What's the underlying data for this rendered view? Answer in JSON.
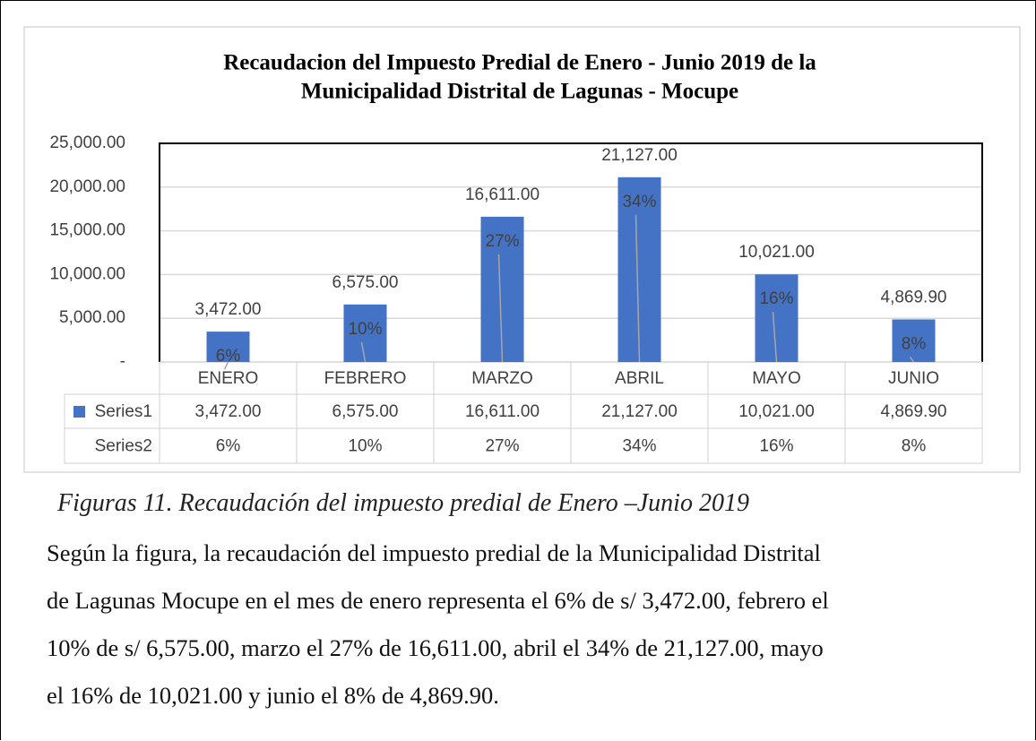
{
  "chart_data": {
    "type": "bar",
    "title": [
      "Recaudacion del Impuesto Predial de Enero - Junio 2019 de la",
      "Municipalidad Distrital de Lagunas - Mocupe"
    ],
    "categories": [
      "ENERO",
      "FEBRERO",
      "MARZO",
      "ABRIL",
      "MAYO",
      "JUNIO"
    ],
    "series": [
      {
        "name": "Series1",
        "color": "#4472c4",
        "values": [
          3472,
          6575,
          16611,
          21127,
          10021,
          4869.9
        ],
        "value_labels": [
          "3,472.00",
          "6,575.00",
          "16,611.00",
          "21,127.00",
          "10,021.00",
          "4,869.90"
        ]
      },
      {
        "name": "Series2",
        "values": [
          6,
          10,
          27,
          34,
          16,
          8
        ],
        "value_labels": [
          "6%",
          "10%",
          "27%",
          "34%",
          "16%",
          "8%"
        ]
      }
    ],
    "ylim": [
      0,
      25000
    ],
    "yticks": [
      {
        "value": 0,
        "label": "-"
      },
      {
        "value": 5000,
        "label": "5,000.00"
      },
      {
        "value": 10000,
        "label": "10,000.00"
      },
      {
        "value": 15000,
        "label": "15,000.00"
      },
      {
        "value": 20000,
        "label": "20,000.00"
      },
      {
        "value": 25000,
        "label": "25,000.00"
      }
    ],
    "grid": true,
    "data_table": true
  },
  "caption": "Figuras 11. Recaudación del impuesto predial de  Enero –Junio 2019",
  "paragraph": [
    "Según la figura, la recaudación del impuesto predial de la Municipalidad Distrital",
    "de Lagunas Mocupe en el mes de enero representa el 6% de s/ 3,472.00, febrero el",
    "10% de s/ 6,575.00, marzo el 27% de 16,611.00, abril el 34% de 21,127.00, mayo",
    "el 16% de 10,021.00 y junio el 8% de 4,869.90."
  ]
}
